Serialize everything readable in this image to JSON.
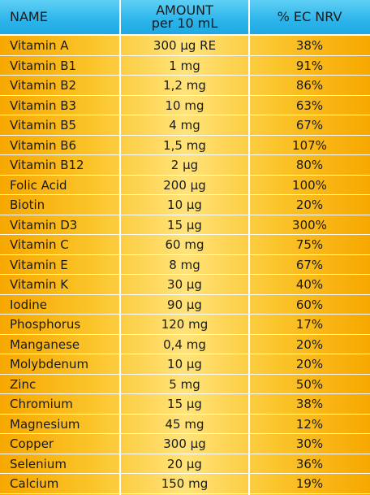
{
  "headers": {
    "name": "NAME",
    "amount_line1": "AMOUNT",
    "amount_line2": "per 10 mL",
    "nrv": "% EC NRV"
  },
  "rows": [
    {
      "name": "Vitamin A",
      "amount": "300 µg RE",
      "nrv": "38%"
    },
    {
      "name": "Vitamin B1",
      "amount": "1 mg",
      "nrv": "91%"
    },
    {
      "name": "Vitamin B2",
      "amount": "1,2 mg",
      "nrv": "86%"
    },
    {
      "name": "Vitamin B3",
      "amount": "10 mg",
      "nrv": "63%"
    },
    {
      "name": "Vitamin B5",
      "amount": "4 mg",
      "nrv": "67%"
    },
    {
      "name": "Vitamin B6",
      "amount": "1,5 mg",
      "nrv": "107%"
    },
    {
      "name": "Vitamin B12",
      "amount": "2 µg",
      "nrv": "80%"
    },
    {
      "name": "Folic Acid",
      "amount": "200 µg",
      "nrv": "100%"
    },
    {
      "name": "Biotin",
      "amount": "10 µg",
      "nrv": "20%"
    },
    {
      "name": "Vitamin D3",
      "amount": "15 µg",
      "nrv": "300%"
    },
    {
      "name": "Vitamin C",
      "amount": "60 mg",
      "nrv": "75%"
    },
    {
      "name": "Vitamin E",
      "amount": "8 mg",
      "nrv": "67%"
    },
    {
      "name": "Vitamin K",
      "amount": "30 µg",
      "nrv": "40%"
    },
    {
      "name": "Iodine",
      "amount": "90 µg",
      "nrv": "60%"
    },
    {
      "name": "Phosphorus",
      "amount": "120 mg",
      "nrv": "17%"
    },
    {
      "name": "Manganese",
      "amount": "0,4 mg",
      "nrv": "20%"
    },
    {
      "name": "Molybdenum",
      "amount": "10 µg",
      "nrv": "20%"
    },
    {
      "name": "Zinc",
      "amount": "5 mg",
      "nrv": "50%"
    },
    {
      "name": "Chromium",
      "amount": "15 µg",
      "nrv": "38%"
    },
    {
      "name": "Magnesium",
      "amount": "45 mg",
      "nrv": "12%"
    },
    {
      "name": "Copper",
      "amount": "300 µg",
      "nrv": "30%"
    },
    {
      "name": "Selenium",
      "amount": "20 µg",
      "nrv": "36%"
    },
    {
      "name": "Calcium",
      "amount": "150 mg",
      "nrv": "19%"
    }
  ],
  "colors": {
    "header": "#2cb4ea",
    "body_edge": "#f7a800",
    "body_center": "#ffe37a",
    "grid": "#ffffff"
  }
}
